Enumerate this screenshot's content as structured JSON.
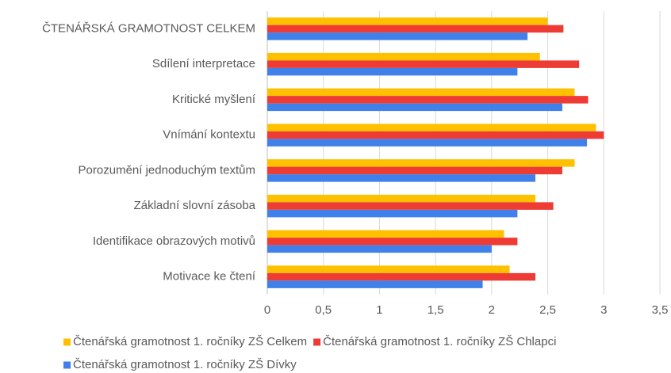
{
  "chart_data": {
    "type": "bar",
    "orientation": "horizontal",
    "categories": [
      "ČTENÁŘSKÁ GRAMOTNOST CELKEM",
      "Sdílení interpretace",
      "Kritické myšlení",
      "Vnímání kontextu",
      "Porozumění jednoduchým textům",
      "Základní slovní zásoba",
      "Identifikace obrazových motivů",
      "Motivace ke čtení"
    ],
    "series": [
      {
        "name": "Čtenářská gramotnost 1. ročníky ZŠ Celkem",
        "color": "#ffc000",
        "values": [
          2.5,
          2.43,
          2.74,
          2.93,
          2.74,
          2.39,
          2.11,
          2.16
        ]
      },
      {
        "name": "Čtenářská gramotnost 1. ročníky ZŠ Chlapci",
        "color": "#ee3b33",
        "values": [
          2.64,
          2.78,
          2.86,
          3.0,
          2.63,
          2.55,
          2.23,
          2.39
        ]
      },
      {
        "name": "Čtenářská gramotnost 1. ročníky ZŠ Dívky",
        "color": "#3f80ea",
        "values": [
          2.32,
          2.23,
          2.63,
          2.85,
          2.39,
          2.23,
          2.0,
          1.92
        ]
      }
    ],
    "xlim": [
      0,
      3.5
    ],
    "xticks": [
      0,
      {
        "value": 0.5,
        "label": "0,5"
      },
      1,
      {
        "value": 1.5,
        "label": "1,5"
      },
      2,
      {
        "value": 2.5,
        "label": "2,5"
      },
      3,
      {
        "value": 3.5,
        "label": "3,5"
      }
    ],
    "grid": true,
    "legend": "bottom"
  }
}
